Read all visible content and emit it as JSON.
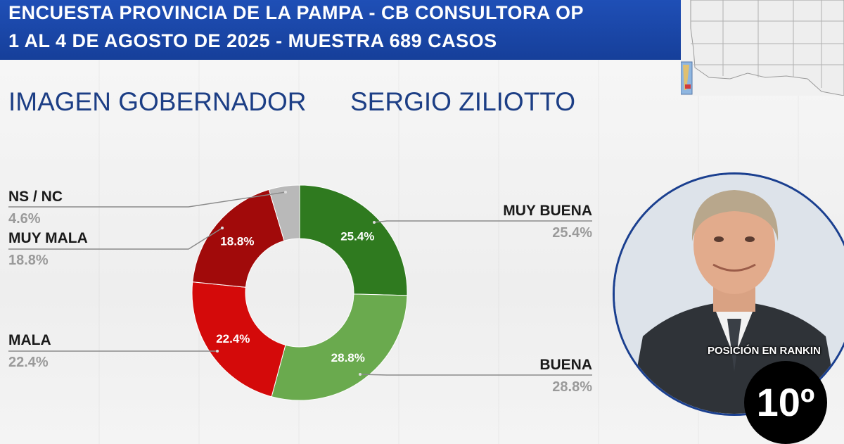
{
  "header": {
    "line1": "ENCUESTA PROVINCIA DE LA PAMPA - CB CONSULTORA OP",
    "line2": "1 AL 4 DE AGOSTO DE 2025 - MUESTRA 689 CASOS"
  },
  "title": {
    "part1": "IMAGEN GOBERNADOR",
    "part2": "SERGIO ZILIOTTO"
  },
  "ranking": {
    "label": "POSICIÓN EN RANKIN",
    "position": "10º"
  },
  "colors": {
    "header_bg": "#1f4fb6",
    "title_text": "#1c3e85",
    "muy_buena": "#2f7a1f",
    "buena": "#6aaa4e",
    "mala": "#d40a0a",
    "muy_mala": "#a10a0a",
    "ns_nc": "#b9b9b9"
  },
  "chart_data": {
    "type": "pie",
    "donut": true,
    "title": "IMAGEN GOBERNADOR SERGIO ZILIOTTO",
    "slices": [
      {
        "label": "MUY BUENA",
        "value": 25.4,
        "display": "25.4%",
        "color": "#2f7a1f"
      },
      {
        "label": "BUENA",
        "value": 28.8,
        "display": "28.8%",
        "color": "#6aaa4e"
      },
      {
        "label": "MALA",
        "value": 22.4,
        "display": "22.4%",
        "color": "#d40a0a"
      },
      {
        "label": "MUY MALA",
        "value": 18.8,
        "display": "18.8%",
        "color": "#a10a0a"
      },
      {
        "label": "NS / NC",
        "value": 4.6,
        "display": "4.6%",
        "color": "#b9b9b9"
      }
    ]
  }
}
